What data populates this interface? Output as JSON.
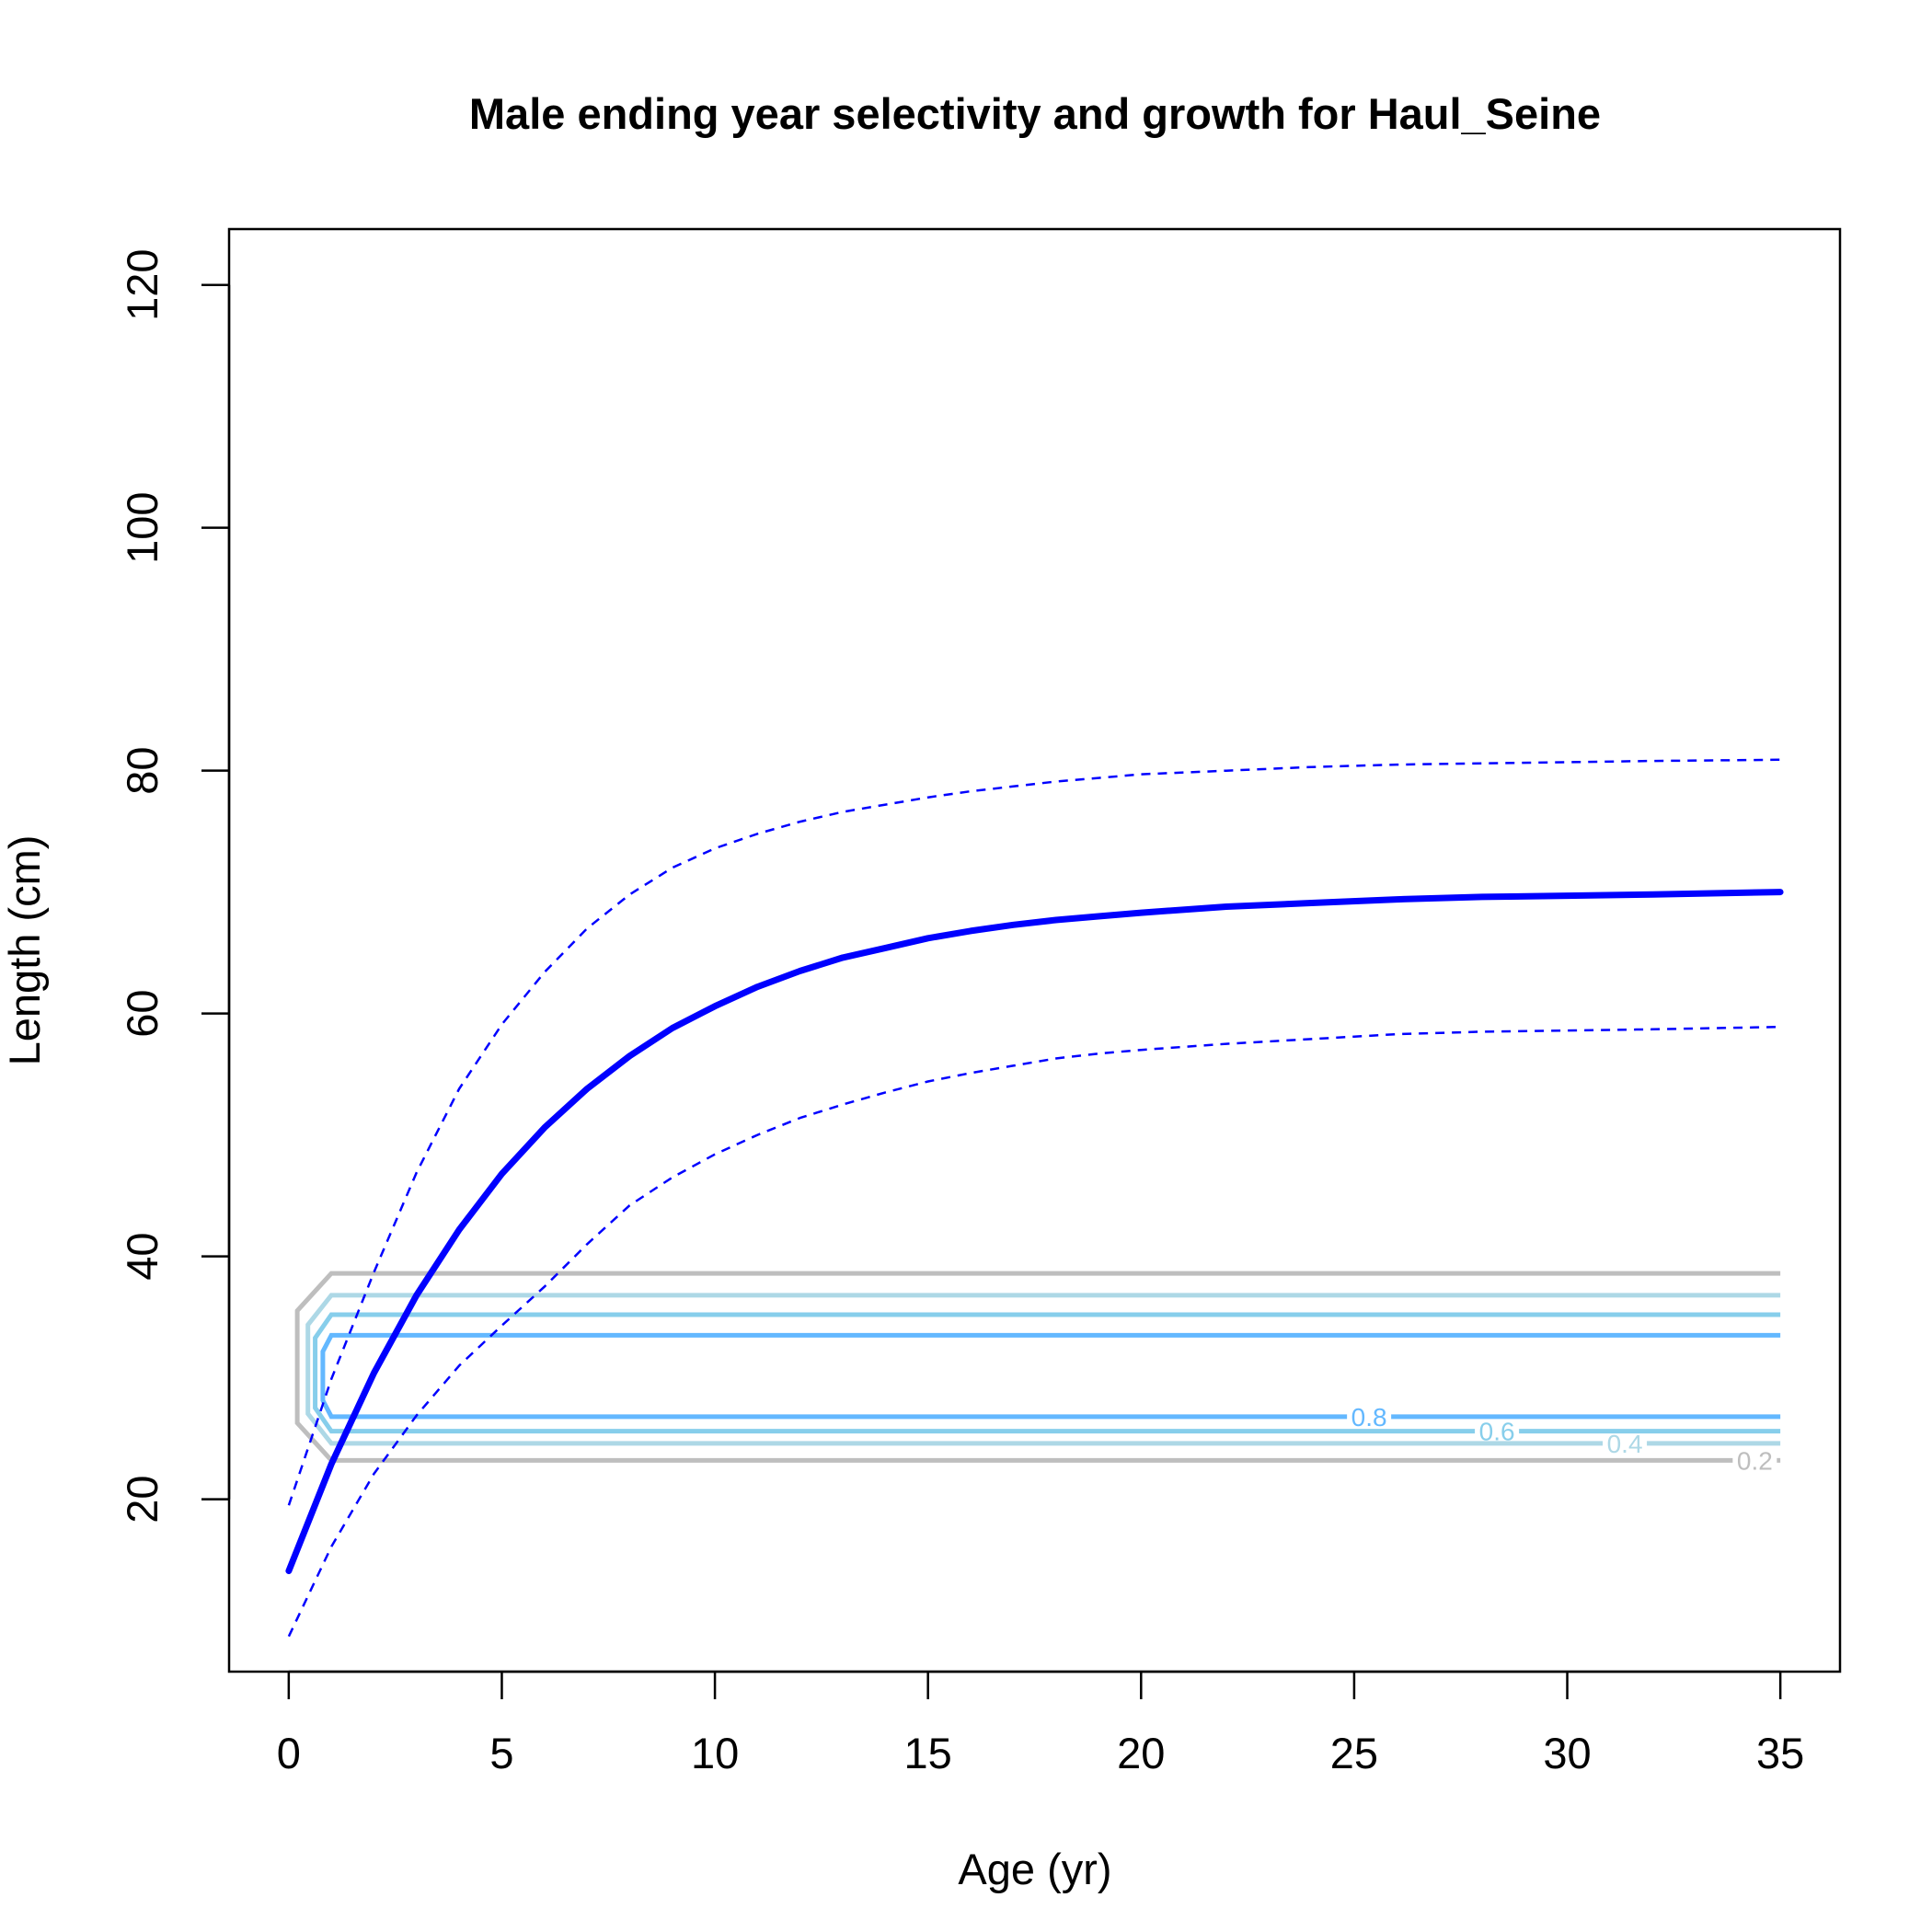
{
  "chart_data": {
    "type": "line",
    "title": "Male ending year selectivity and growth for Haul_Seine",
    "xlabel": "Age (yr)",
    "ylabel": "Length (cm)",
    "xlim": [
      -1.4,
      36.4
    ],
    "ylim": [
      5.8,
      124.6
    ],
    "x_ticks": [
      0,
      5,
      10,
      15,
      20,
      25,
      30,
      35
    ],
    "y_ticks": [
      20,
      40,
      60,
      80,
      100,
      120
    ],
    "grid": false,
    "legend": "none",
    "colors": {
      "growth": "#0000ff",
      "contour_0.2": "#bebebe",
      "contour_0.4": "#add8e6",
      "contour_0.6": "#87ceeb",
      "contour_0.8": "#63b8ff"
    },
    "series": [
      {
        "key": "mean",
        "style": "solid",
        "x": [
          0,
          1,
          2,
          3,
          4,
          5,
          6,
          7,
          8,
          9,
          10,
          11,
          12,
          13,
          14,
          15,
          16,
          17,
          18,
          19,
          20,
          22,
          24,
          26,
          28,
          30,
          32,
          35
        ],
        "y": [
          14.1,
          22.9,
          30.4,
          36.8,
          42.2,
          46.8,
          50.6,
          53.8,
          56.5,
          58.8,
          60.6,
          62.2,
          63.5,
          64.6,
          65.4,
          66.2,
          66.8,
          67.3,
          67.7,
          68.0,
          68.3,
          68.8,
          69.1,
          69.4,
          69.6,
          69.7,
          69.8,
          70.0
        ]
      },
      {
        "key": "upper",
        "style": "dashed",
        "x": [
          0,
          1,
          2,
          3,
          4,
          5,
          6,
          7,
          8,
          9,
          10,
          11,
          12,
          13,
          14,
          15,
          16,
          17,
          18,
          19,
          20,
          22,
          24,
          26,
          28,
          30,
          32,
          35
        ],
        "y": [
          19.5,
          29.9,
          38.7,
          46.9,
          53.8,
          59.1,
          63.4,
          67.0,
          69.8,
          72.0,
          73.6,
          74.8,
          75.8,
          76.6,
          77.2,
          77.8,
          78.3,
          78.7,
          79.1,
          79.4,
          79.7,
          80.0,
          80.3,
          80.5,
          80.6,
          80.7,
          80.8,
          80.9
        ]
      },
      {
        "key": "lower",
        "style": "dashed",
        "x": [
          0,
          1,
          2,
          3,
          4,
          5,
          6,
          7,
          8,
          9,
          10,
          11,
          12,
          13,
          14,
          15,
          16,
          17,
          18,
          19,
          20,
          22,
          24,
          26,
          28,
          30,
          32,
          35
        ],
        "y": [
          8.7,
          16.1,
          22.1,
          26.9,
          31.0,
          34.3,
          37.5,
          41.0,
          44.2,
          46.5,
          48.4,
          50.0,
          51.4,
          52.5,
          53.5,
          54.4,
          55.1,
          55.7,
          56.3,
          56.7,
          57.0,
          57.5,
          57.9,
          58.3,
          58.5,
          58.6,
          58.7,
          58.9
        ]
      }
    ],
    "selectivity_contours": [
      {
        "level": 0.2,
        "label": "0.2",
        "top": 38.6,
        "bottom": 23.2,
        "x_left": 0.2,
        "x_corner": 1.0,
        "x_end": 35,
        "label_x": 34.4
      },
      {
        "level": 0.4,
        "label": "0.4",
        "top": 36.8,
        "bottom": 24.6,
        "x_left": 0.45,
        "x_corner": 1.0,
        "x_end": 35,
        "label_x": 31.35
      },
      {
        "level": 0.6,
        "label": "0.6",
        "top": 35.2,
        "bottom": 25.6,
        "x_left": 0.62,
        "x_corner": 1.0,
        "x_end": 35,
        "label_x": 28.35
      },
      {
        "level": 0.8,
        "label": "0.8",
        "top": 33.5,
        "bottom": 26.8,
        "x_left": 0.8,
        "x_corner": 1.0,
        "x_end": 35,
        "label_x": 25.35
      }
    ]
  }
}
